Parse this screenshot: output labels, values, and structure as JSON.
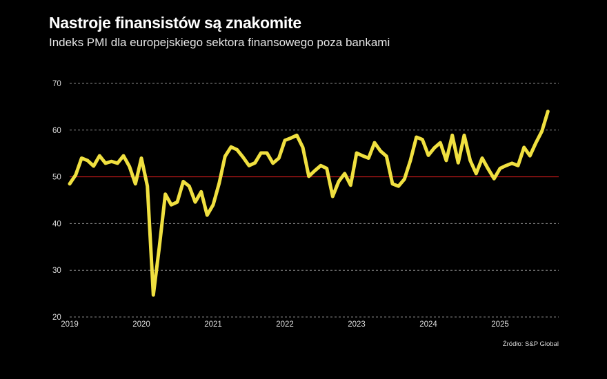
{
  "title": "Nastroje finansistów są znakomite",
  "subtitle": "Indeks PMI dla europejskiego sektora finansowego poza bankami",
  "source": "Źródło: S&P Global",
  "chart_data": {
    "type": "line",
    "title": "Nastroje finansistów są znakomite",
    "subtitle": "Indeks PMI dla europejskiego sektora finansowego poza bankami",
    "x_start": "2019-01",
    "x_frequency": "monthly",
    "x_ticks": [
      "2019",
      "2020",
      "2021",
      "2022",
      "2023",
      "2024",
      "2025"
    ],
    "y_ticks": [
      20,
      30,
      40,
      50,
      60,
      70
    ],
    "ylim": [
      20,
      70
    ],
    "grid": "horizontal dashed",
    "reference_line": {
      "value": 50,
      "color": "#d81e1e"
    },
    "line_color": "#f0e040",
    "values": [
      48.5,
      50.4,
      54,
      53.5,
      52.3,
      54.5,
      52.9,
      53.3,
      52.9,
      54.5,
      52.2,
      48.5,
      54,
      48,
      24.7,
      35,
      46.3,
      44,
      44.6,
      49,
      48,
      44.6,
      46.8,
      41.8,
      44,
      48.6,
      54.4,
      56.4,
      55.8,
      54.2,
      52.4,
      53,
      55.1,
      55.1,
      52.9,
      54,
      57.8,
      58.3,
      58.9,
      56.3,
      50.1,
      51.3,
      52.4,
      51.8,
      45.8,
      49,
      50.7,
      48.2,
      55.1,
      54.5,
      54,
      57.3,
      55.5,
      54.4,
      48.5,
      48,
      49.5,
      53.5,
      58.5,
      58,
      54.6,
      56.2,
      57.3,
      53.5,
      58.9,
      53,
      58.9,
      53.5,
      50.7,
      54,
      51.7,
      49.6,
      51.8,
      52.4,
      52.9,
      52.4,
      56.3,
      54.5,
      57.3,
      59.8,
      64
    ]
  }
}
